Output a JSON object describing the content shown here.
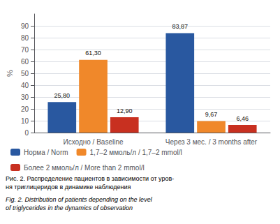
{
  "chart_data": {
    "type": "bar",
    "categories": [
      "Исходно / Baseline",
      "Через 3 мес. / 3 months after"
    ],
    "series": [
      {
        "name": "Норма / Norm",
        "color": "#2958A0",
        "values": [
          25.8,
          83.87
        ],
        "value_labels": [
          "25,80",
          "83,87"
        ]
      },
      {
        "name": "1,7–2 ммоль/л / 1,7–2 mmol/l",
        "color": "#F0882A",
        "values": [
          61.3,
          9.67
        ],
        "value_labels": [
          "61,30",
          "9,67"
        ]
      },
      {
        "name": "Более 2 ммоль/л / More than 2 mmol/l",
        "color": "#C83020",
        "values": [
          12.9,
          6.46
        ],
        "value_labels": [
          "12,90",
          "6,46"
        ]
      }
    ],
    "ylabel": "%",
    "ylim": [
      0,
      100
    ],
    "yticks": [
      0,
      10,
      20,
      30,
      40,
      50,
      60,
      70,
      80,
      90
    ],
    "grid": true,
    "data_labels": true,
    "legend": "bottom",
    "annotations": [
      "Рис. 2. Распределение пациентов в зависимости от уров-\nня триглицеридов в динамике наблюдения",
      "Fig. 2. Distribution of patients depending on the level\nof triglycerides in the dynamics of observation"
    ]
  }
}
